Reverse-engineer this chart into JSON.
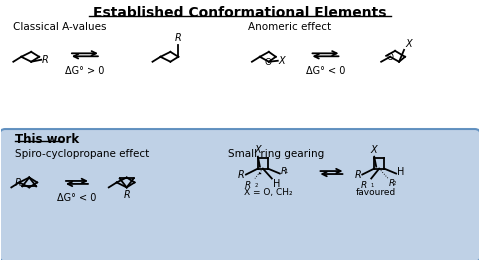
{
  "title": "Established Conformational Elements",
  "title_fontsize": 10,
  "title_fontweight": "bold",
  "bg_color": "#ffffff",
  "box_color": "#b8cce4",
  "box_label": "This work",
  "label1": "Classical A-values",
  "label2": "Anomeric effect",
  "label3": "Spiro-cyclopropane effect",
  "label4": "Small ring gearing",
  "dg1": "ΔG° > 0",
  "dg2": "ΔG° < 0",
  "dg3": "ΔG° < 0",
  "favoured": "favoured",
  "x_eq_o_ch2": "X = O, CH₂",
  "line_color": "#000000",
  "text_color": "#000000",
  "box_edge_color": "#5588bb"
}
